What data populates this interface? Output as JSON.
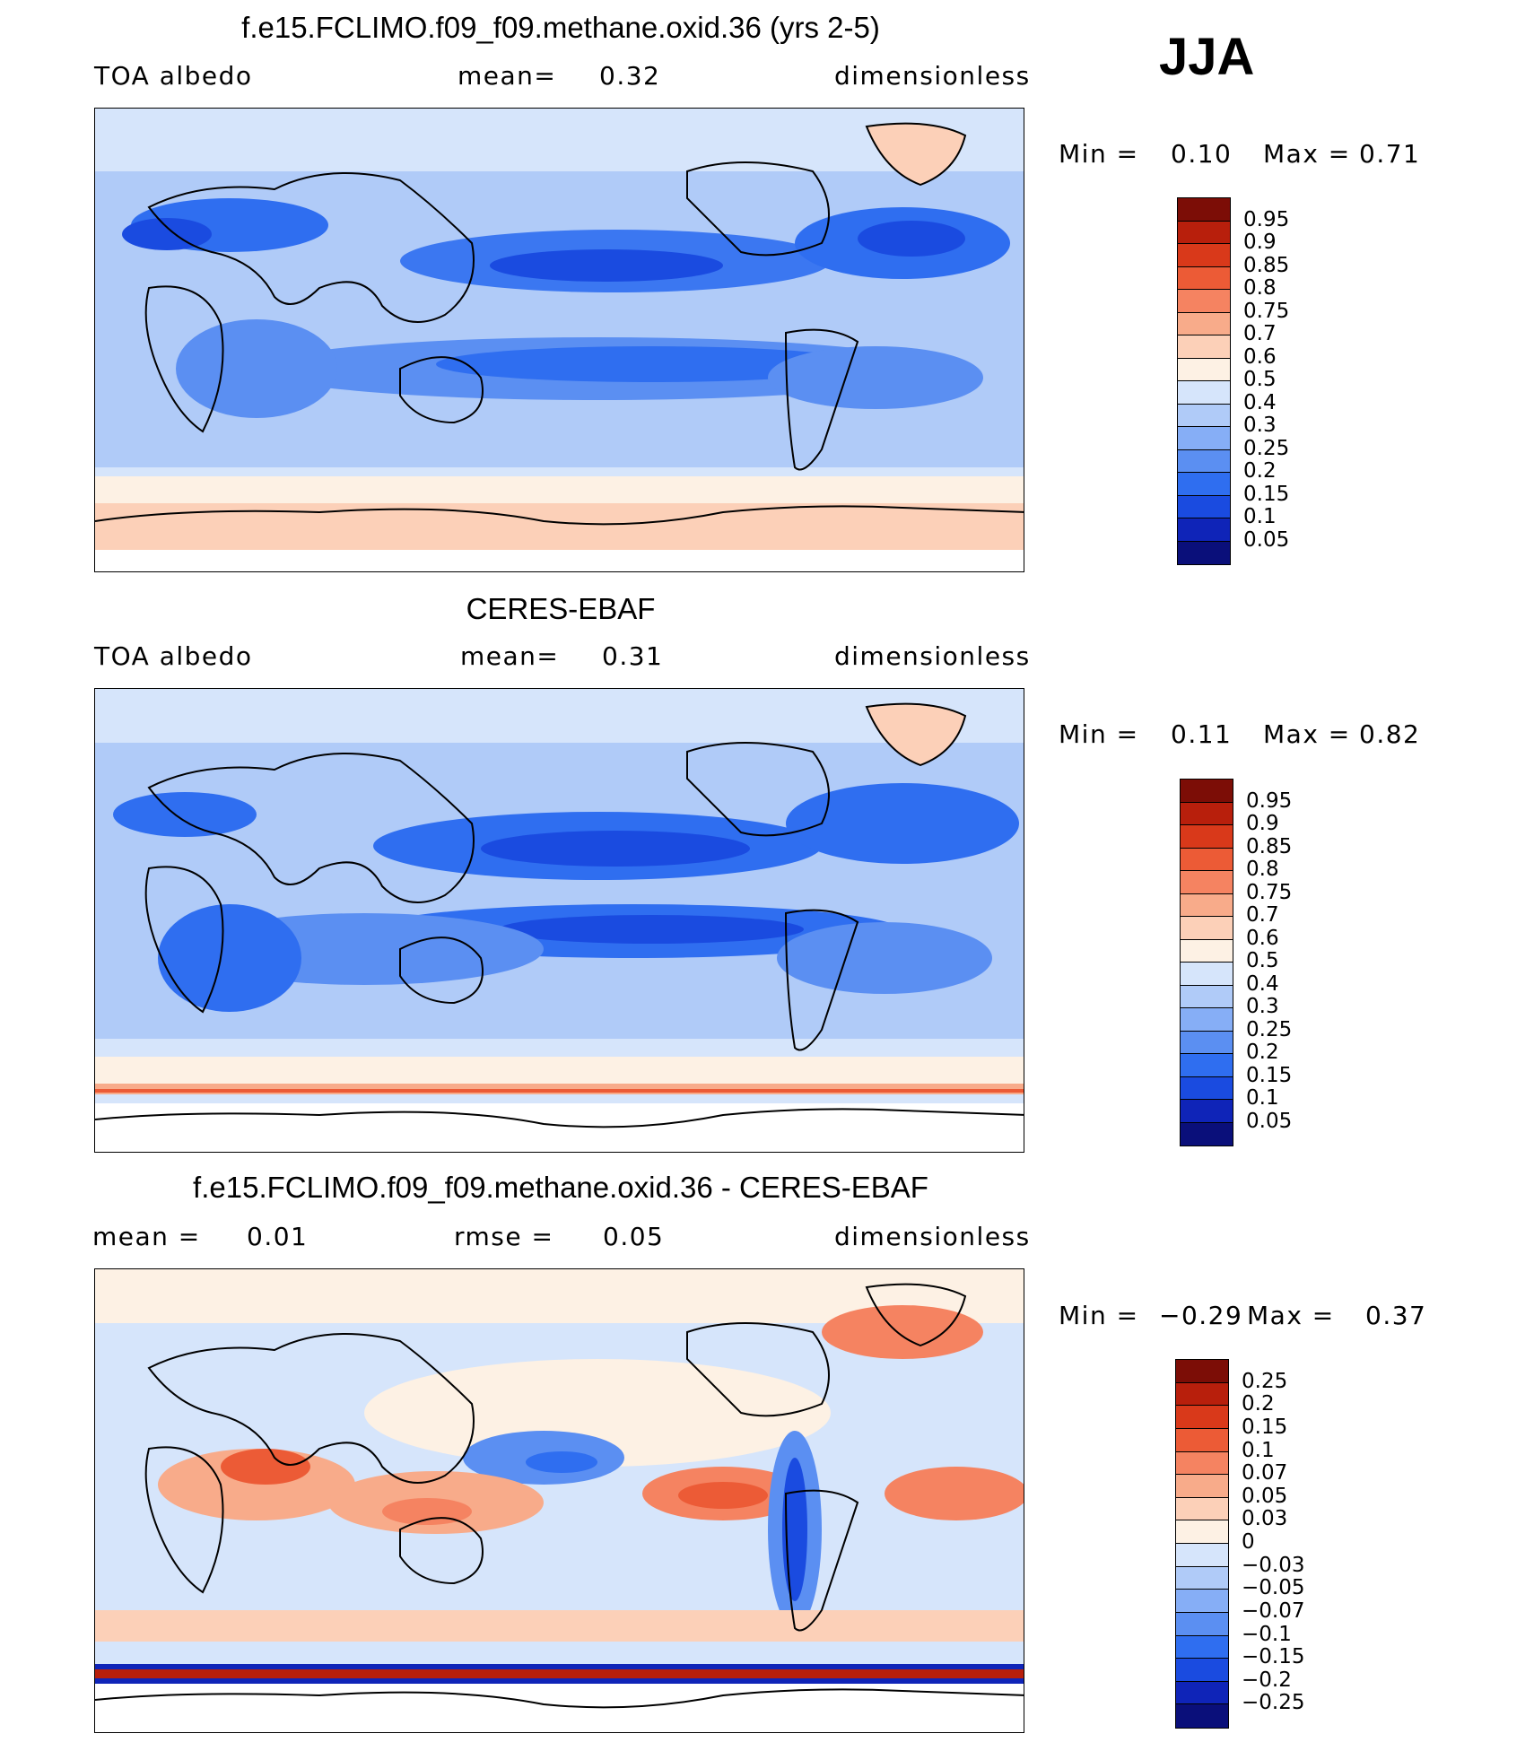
{
  "season": "JJA",
  "colors": {
    "abs_levels": [
      "#0a0f7a",
      "#0f24b8",
      "#1a4be0",
      "#2f6ef0",
      "#5b8ff2",
      "#86aef6",
      "#b0cbf8",
      "#d6e5fb",
      "#fdf1e4",
      "#fcd0b8",
      "#f8ab8a",
      "#f58361",
      "#ec5b36",
      "#d9391a",
      "#b81f0c",
      "#7c0d06"
    ],
    "diff_levels": [
      "#0a0f7a",
      "#0f24b8",
      "#1a4be0",
      "#2f6ef0",
      "#5b8ff2",
      "#86aef6",
      "#b0cbf8",
      "#d6e5fb",
      "#fdf1e4",
      "#fcd0b8",
      "#f8ab8a",
      "#f58361",
      "#ec5b36",
      "#d9391a",
      "#b81f0c",
      "#7c0d06"
    ]
  },
  "panels": [
    {
      "id": "model",
      "title": "f.e15.FCLIMO.f09_f09.methane.oxid.36 (yrs 2-5)",
      "left_label": "TOA  albedo",
      "mid_label": "mean=",
      "mid_value": "0.32",
      "right_label": "dimensionless",
      "min_label": "Min  =",
      "min_value": "0.10",
      "max_label": "Max  =",
      "max_value": "0.71",
      "colorbar_labels": [
        "0.95",
        "0.9",
        "0.85",
        "0.8",
        "0.75",
        "0.7",
        "0.6",
        "0.5",
        "0.4",
        "0.3",
        "0.25",
        "0.2",
        "0.15",
        "0.1",
        "0.05"
      ]
    },
    {
      "id": "obs",
      "title": "CERES-EBAF",
      "left_label": "TOA  albedo",
      "mid_label": "mean=",
      "mid_value": "0.31",
      "right_label": "dimensionless",
      "min_label": "Min  =",
      "min_value": "0.11",
      "max_label": "Max  =",
      "max_value": "0.82",
      "colorbar_labels": [
        "0.95",
        "0.9",
        "0.85",
        "0.8",
        "0.75",
        "0.7",
        "0.6",
        "0.5",
        "0.4",
        "0.3",
        "0.25",
        "0.2",
        "0.15",
        "0.1",
        "0.05"
      ]
    },
    {
      "id": "diff",
      "title": "f.e15.FCLIMO.f09_f09.methane.oxid.36 - CERES-EBAF",
      "left_label": "mean  =",
      "left_value": "0.01",
      "mid_label": "rmse  =",
      "mid_value": "0.05",
      "right_label": "dimensionless",
      "min_label": "Min  =",
      "min_value": "−0.29",
      "max_label": "Max  =",
      "max_value": "0.37",
      "colorbar_labels": [
        "0.25",
        "0.2",
        "0.15",
        "0.1",
        "0.07",
        "0.05",
        "0.03",
        "0",
        "−0.03",
        "−0.05",
        "−0.07",
        "−0.1",
        "−0.15",
        "−0.2",
        "−0.25"
      ]
    }
  ]
}
